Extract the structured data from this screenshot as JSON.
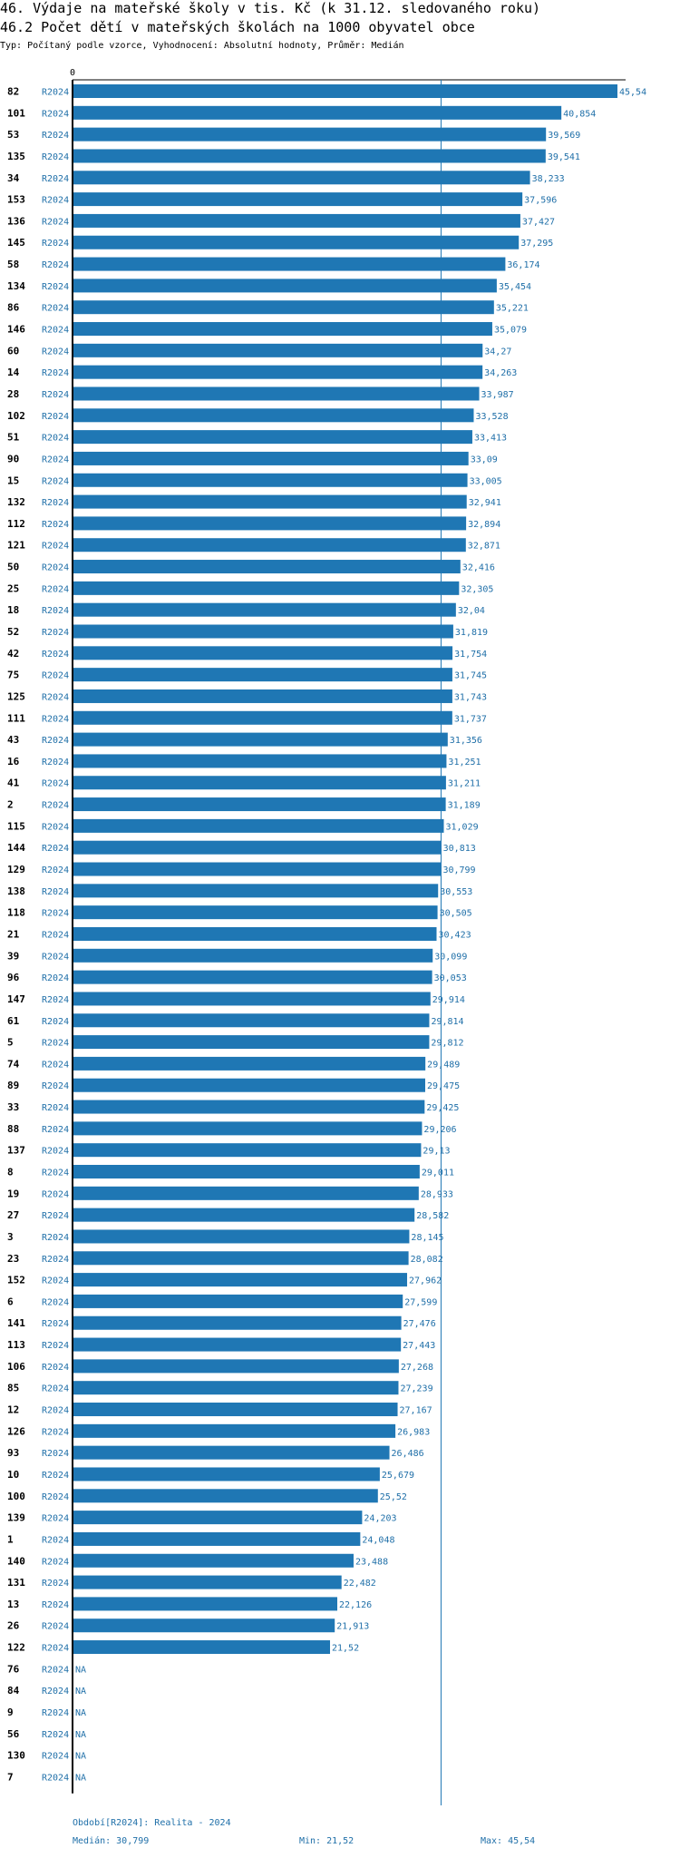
{
  "title_line1": "46. Výdaje na mateřské školy v tis. Kč (k 31.12. sledovaného roku)",
  "title_line2": "46.2 Počet dětí v mateřských školách na 1000 obyvatel obce",
  "subtitle": "Typ: Počítaný podle vzorce, Vyhodnocení: Absolutní hodnoty, Průměr: Medián",
  "footer": {
    "period": "Období[R2024]: Realita - 2024",
    "median": "Medián: 30,799",
    "min": "Min: 21,52",
    "max": "Max: 45,54"
  },
  "colors": {
    "bar": "#1f77b4",
    "value_text": "#1f6fa8",
    "axis": "#000000",
    "median_line": "#1f77b4"
  },
  "chart_data": {
    "type": "bar",
    "orientation": "horizontal",
    "series_label": "R2024",
    "x_tick_labels": [
      "0"
    ],
    "xlim": [
      0,
      45.54
    ],
    "median": 30.799,
    "median_label": "30,799",
    "rows": [
      {
        "id": "82",
        "value": 45.54,
        "label": "45,54"
      },
      {
        "id": "101",
        "value": 40.854,
        "label": "40,854"
      },
      {
        "id": "53",
        "value": 39.569,
        "label": "39,569"
      },
      {
        "id": "135",
        "value": 39.541,
        "label": "39,541"
      },
      {
        "id": "34",
        "value": 38.233,
        "label": "38,233"
      },
      {
        "id": "153",
        "value": 37.596,
        "label": "37,596"
      },
      {
        "id": "136",
        "value": 37.427,
        "label": "37,427"
      },
      {
        "id": "145",
        "value": 37.295,
        "label": "37,295"
      },
      {
        "id": "58",
        "value": 36.174,
        "label": "36,174"
      },
      {
        "id": "134",
        "value": 35.454,
        "label": "35,454"
      },
      {
        "id": "86",
        "value": 35.221,
        "label": "35,221"
      },
      {
        "id": "146",
        "value": 35.079,
        "label": "35,079"
      },
      {
        "id": "60",
        "value": 34.27,
        "label": "34,27"
      },
      {
        "id": "14",
        "value": 34.263,
        "label": "34,263"
      },
      {
        "id": "28",
        "value": 33.987,
        "label": "33,987"
      },
      {
        "id": "102",
        "value": 33.528,
        "label": "33,528"
      },
      {
        "id": "51",
        "value": 33.413,
        "label": "33,413"
      },
      {
        "id": "90",
        "value": 33.09,
        "label": "33,09"
      },
      {
        "id": "15",
        "value": 33.005,
        "label": "33,005"
      },
      {
        "id": "132",
        "value": 32.941,
        "label": "32,941"
      },
      {
        "id": "112",
        "value": 32.894,
        "label": "32,894"
      },
      {
        "id": "121",
        "value": 32.871,
        "label": "32,871"
      },
      {
        "id": "50",
        "value": 32.416,
        "label": "32,416"
      },
      {
        "id": "25",
        "value": 32.305,
        "label": "32,305"
      },
      {
        "id": "18",
        "value": 32.04,
        "label": "32,04"
      },
      {
        "id": "52",
        "value": 31.819,
        "label": "31,819"
      },
      {
        "id": "42",
        "value": 31.754,
        "label": "31,754"
      },
      {
        "id": "75",
        "value": 31.745,
        "label": "31,745"
      },
      {
        "id": "125",
        "value": 31.743,
        "label": "31,743"
      },
      {
        "id": "111",
        "value": 31.737,
        "label": "31,737"
      },
      {
        "id": "43",
        "value": 31.356,
        "label": "31,356"
      },
      {
        "id": "16",
        "value": 31.251,
        "label": "31,251"
      },
      {
        "id": "41",
        "value": 31.211,
        "label": "31,211"
      },
      {
        "id": "2",
        "value": 31.189,
        "label": "31,189"
      },
      {
        "id": "115",
        "value": 31.029,
        "label": "31,029"
      },
      {
        "id": "144",
        "value": 30.813,
        "label": "30,813"
      },
      {
        "id": "129",
        "value": 30.799,
        "label": "30,799"
      },
      {
        "id": "138",
        "value": 30.553,
        "label": "30,553"
      },
      {
        "id": "118",
        "value": 30.505,
        "label": "30,505"
      },
      {
        "id": "21",
        "value": 30.423,
        "label": "30,423"
      },
      {
        "id": "39",
        "value": 30.099,
        "label": "30,099"
      },
      {
        "id": "96",
        "value": 30.053,
        "label": "30,053"
      },
      {
        "id": "147",
        "value": 29.914,
        "label": "29,914"
      },
      {
        "id": "61",
        "value": 29.814,
        "label": "29,814"
      },
      {
        "id": "5",
        "value": 29.812,
        "label": "29,812"
      },
      {
        "id": "74",
        "value": 29.489,
        "label": "29,489"
      },
      {
        "id": "89",
        "value": 29.475,
        "label": "29,475"
      },
      {
        "id": "33",
        "value": 29.425,
        "label": "29,425"
      },
      {
        "id": "88",
        "value": 29.206,
        "label": "29,206"
      },
      {
        "id": "137",
        "value": 29.13,
        "label": "29,13"
      },
      {
        "id": "8",
        "value": 29.011,
        "label": "29,011"
      },
      {
        "id": "19",
        "value": 28.933,
        "label": "28,933"
      },
      {
        "id": "27",
        "value": 28.582,
        "label": "28,582"
      },
      {
        "id": "3",
        "value": 28.145,
        "label": "28,145"
      },
      {
        "id": "23",
        "value": 28.082,
        "label": "28,082"
      },
      {
        "id": "152",
        "value": 27.962,
        "label": "27,962"
      },
      {
        "id": "6",
        "value": 27.599,
        "label": "27,599"
      },
      {
        "id": "141",
        "value": 27.476,
        "label": "27,476"
      },
      {
        "id": "113",
        "value": 27.443,
        "label": "27,443"
      },
      {
        "id": "106",
        "value": 27.268,
        "label": "27,268"
      },
      {
        "id": "85",
        "value": 27.239,
        "label": "27,239"
      },
      {
        "id": "12",
        "value": 27.167,
        "label": "27,167"
      },
      {
        "id": "126",
        "value": 26.983,
        "label": "26,983"
      },
      {
        "id": "93",
        "value": 26.486,
        "label": "26,486"
      },
      {
        "id": "10",
        "value": 25.679,
        "label": "25,679"
      },
      {
        "id": "100",
        "value": 25.52,
        "label": "25,52"
      },
      {
        "id": "139",
        "value": 24.203,
        "label": "24,203"
      },
      {
        "id": "1",
        "value": 24.048,
        "label": "24,048"
      },
      {
        "id": "140",
        "value": 23.488,
        "label": "23,488"
      },
      {
        "id": "131",
        "value": 22.482,
        "label": "22,482"
      },
      {
        "id": "13",
        "value": 22.126,
        "label": "22,126"
      },
      {
        "id": "26",
        "value": 21.913,
        "label": "21,913"
      },
      {
        "id": "122",
        "value": 21.52,
        "label": "21,52"
      },
      {
        "id": "76",
        "value": null,
        "label": "NA"
      },
      {
        "id": "84",
        "value": null,
        "label": "NA"
      },
      {
        "id": "9",
        "value": null,
        "label": "NA"
      },
      {
        "id": "56",
        "value": null,
        "label": "NA"
      },
      {
        "id": "130",
        "value": null,
        "label": "NA"
      },
      {
        "id": "7",
        "value": null,
        "label": "NA"
      }
    ]
  }
}
